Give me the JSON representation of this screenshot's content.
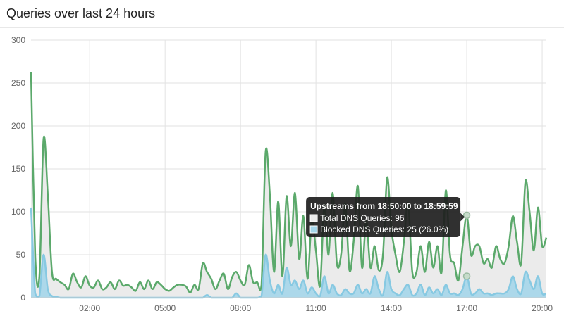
{
  "header": {
    "title": "Queries over last 24 hours"
  },
  "colors": {
    "total": "#5ba96b",
    "total_fill": "#ebebeb",
    "blocked": "#87c9e2",
    "blocked_fill": "#a5d6ea",
    "grid": "#e2e2e2",
    "tooltip_bg": "#1e1e1e"
  },
  "chart_data": {
    "type": "area",
    "x_ticks": [
      "02:00",
      "05:00",
      "08:00",
      "11:00",
      "14:00",
      "17:00",
      "20:00"
    ],
    "y_ticks": [
      0,
      50,
      100,
      150,
      200,
      250,
      300
    ],
    "ylim": [
      0,
      300
    ],
    "grid": true,
    "series": [
      {
        "name": "Total DNS Queries",
        "values": [
          263,
          50,
          25,
          185,
          120,
          30,
          22,
          18,
          15,
          10,
          28,
          18,
          12,
          25,
          14,
          12,
          20,
          10,
          12,
          18,
          10,
          20,
          14,
          15,
          12,
          8,
          18,
          10,
          20,
          10,
          18,
          15,
          10,
          8,
          12,
          15,
          15,
          13,
          6,
          15,
          10,
          40,
          30,
          22,
          10,
          20,
          28,
          10,
          24,
          30,
          20,
          15,
          38,
          18,
          18,
          15,
          170,
          120,
          30,
          112,
          25,
          118,
          60,
          122,
          45,
          95,
          22,
          90,
          55,
          14,
          108,
          50,
          122,
          40,
          50,
          110,
          32,
          65,
          130,
          35,
          90,
          35,
          60,
          32,
          50,
          140,
          80,
          50,
          30,
          65,
          110,
          30,
          30,
          60,
          30,
          65,
          35,
          60,
          30,
          125,
          50,
          40,
          20,
          60,
          96,
          50,
          60,
          60,
          40,
          45,
          35,
          60,
          45,
          40,
          60,
          95,
          65,
          40,
          135,
          100,
          55,
          105,
          60,
          70
        ]
      },
      {
        "name": "Blocked DNS Queries",
        "values": [
          105,
          5,
          2,
          50,
          10,
          2,
          1,
          0,
          0,
          0,
          0,
          0,
          0,
          0,
          0,
          0,
          0,
          0,
          0,
          0,
          0,
          0,
          0,
          0,
          0,
          0,
          0,
          0,
          0,
          0,
          0,
          0,
          0,
          0,
          0,
          0,
          0,
          0,
          0,
          0,
          0,
          0,
          3,
          0,
          0,
          0,
          0,
          0,
          0,
          5,
          0,
          0,
          0,
          0,
          0,
          2,
          50,
          20,
          5,
          15,
          5,
          35,
          15,
          20,
          10,
          20,
          5,
          12,
          5,
          2,
          25,
          5,
          15,
          5,
          3,
          10,
          5,
          5,
          15,
          5,
          10,
          5,
          25,
          10,
          3,
          30,
          10,
          5,
          3,
          10,
          15,
          3,
          5,
          15,
          3,
          12,
          5,
          10,
          3,
          15,
          5,
          5,
          3,
          10,
          25,
          5,
          5,
          10,
          5,
          5,
          3,
          5,
          5,
          5,
          10,
          25,
          10,
          5,
          30,
          20,
          10,
          25,
          5,
          5
        ]
      }
    ],
    "tooltip": {
      "title": "Upstreams from 18:50:00 to 18:59:59",
      "line1": "Total DNS Queries: 96",
      "line2": "Blocked DNS Queries: 25 (26.0%)"
    },
    "tooltip_index": 104
  }
}
